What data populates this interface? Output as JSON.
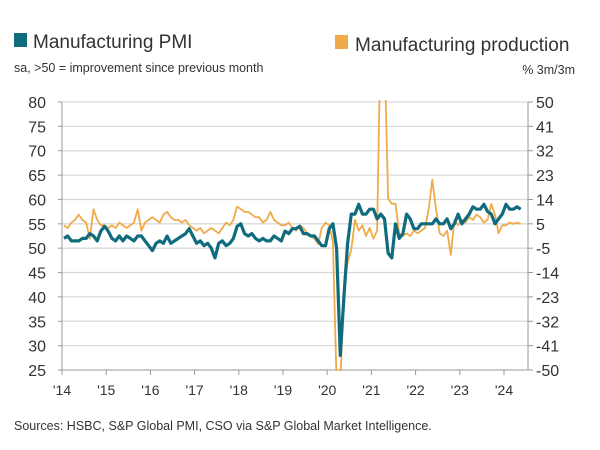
{
  "chart_data": {
    "type": "line",
    "legend_placement": "top",
    "grid": true,
    "source": "Sources: HSBC, S&P Global PMI, CSO via S&P Global Market Intelligence.",
    "x_start": "2014-01",
    "x_frequency": "monthly",
    "x_tick_labels": [
      "'14",
      "'15",
      "'16",
      "'17",
      "'18",
      "'19",
      "'20",
      "'21",
      "'22",
      "'23",
      "'24"
    ],
    "left_axis": {
      "ylim": [
        25,
        80
      ],
      "tick_labels": [
        "80",
        "75",
        "70",
        "65",
        "60",
        "55",
        "50",
        "45",
        "40",
        "35",
        "30",
        "25"
      ]
    },
    "right_axis": {
      "ylim": [
        -50,
        50
      ],
      "tick_labels": [
        "50",
        "41",
        "32",
        "23",
        "14",
        "5",
        "-5",
        "-14",
        "-23",
        "-32",
        "-41",
        "-50"
      ]
    },
    "series": [
      {
        "name": "Manufacturing PMI",
        "subtitle": "sa, >50 = improvement since previous month",
        "axis": "left",
        "color": "#0f6b7d",
        "values": [
          52,
          52.5,
          51.5,
          51.5,
          51.5,
          52,
          52,
          53,
          52.5,
          51.5,
          53.5,
          54.5,
          53.5,
          52,
          51.5,
          52.5,
          51.5,
          52.5,
          52,
          51.5,
          52.5,
          52.5,
          51.5,
          50.5,
          49.5,
          51,
          51.5,
          51,
          52.5,
          51,
          51.5,
          52,
          52.5,
          53,
          54,
          52.5,
          51,
          51.5,
          50.5,
          51,
          50,
          48,
          51,
          51.5,
          50.5,
          51,
          52,
          54.5,
          55,
          53,
          52.5,
          53,
          52,
          51.5,
          52,
          51.5,
          51.5,
          52.5,
          52,
          51.5,
          53.5,
          53,
          54,
          54,
          54.5,
          53,
          53,
          52.5,
          52.5,
          51.5,
          50.5,
          50.5,
          54,
          55,
          50,
          28,
          40,
          51,
          57,
          57,
          59,
          57,
          57,
          58,
          58,
          56,
          57,
          56,
          49,
          48,
          55,
          52,
          53,
          57,
          56,
          54,
          54,
          55,
          55,
          55,
          55,
          56,
          55,
          55,
          56,
          54,
          55,
          57,
          55,
          56,
          57,
          58.5,
          58,
          58,
          59,
          57.5,
          57,
          55,
          56,
          57,
          59,
          58,
          58,
          58.5,
          58
        ]
      },
      {
        "name": "Manufacturing production",
        "subtitle": "% 3m/3m",
        "axis": "right",
        "color": "#f0aa4a",
        "values": [
          4,
          3,
          5,
          6,
          8,
          6,
          5,
          -1,
          10,
          6,
          4,
          4,
          3,
          4,
          3,
          5,
          4,
          3,
          4,
          5,
          10,
          2,
          5,
          6,
          7,
          6,
          5,
          8,
          9,
          7,
          6,
          6,
          5,
          6,
          4,
          3,
          2,
          3,
          1,
          2,
          3,
          2,
          1,
          3,
          5,
          4,
          6,
          11,
          10,
          9,
          9,
          8,
          7,
          7,
          5,
          6,
          9,
          6,
          5,
          4,
          4,
          5,
          3,
          2,
          4,
          3,
          1,
          0,
          -1,
          -3,
          3,
          5,
          4,
          -2,
          -55,
          -55,
          -20,
          -10,
          -5,
          6,
          2,
          4,
          0,
          3,
          -1,
          2,
          80,
          70,
          14,
          12,
          12,
          1,
          0,
          1,
          0,
          2,
          1,
          2,
          3,
          10,
          21,
          10,
          1,
          0,
          2,
          -7,
          6,
          4,
          6,
          5,
          7,
          6,
          8,
          7,
          5,
          6,
          12,
          8,
          1,
          4,
          4,
          5,
          4.5,
          5,
          4.5
        ]
      }
    ]
  }
}
